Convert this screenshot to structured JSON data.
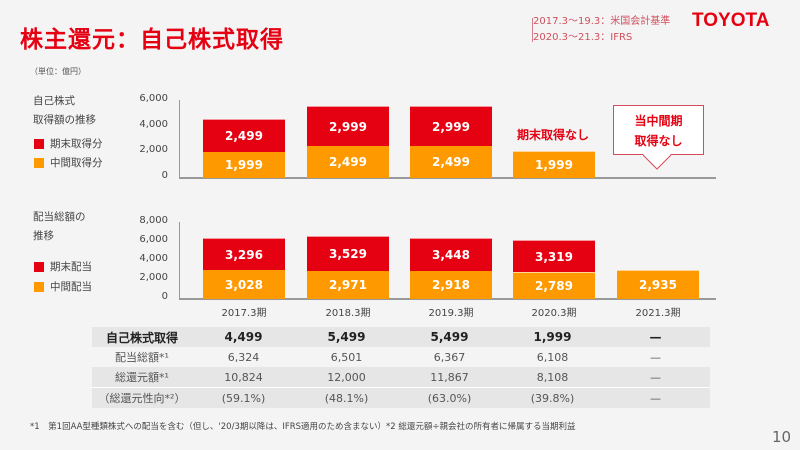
{
  "title": "株主還元：自己株式取得",
  "standards": [
    "2017.3〜19.3：米国会計基準",
    "2020.3〜21.3：IFRS"
  ],
  "logo": "TOYOTA",
  "unit": "（単位：億円）",
  "colors": {
    "end": "#e50012",
    "interim": "#ff9900",
    "accent": "#e50012"
  },
  "chart_data": [
    {
      "type": "bar",
      "stacked": true,
      "title_lines": [
        "自己株式",
        "取得額の推移"
      ],
      "categories": [
        "2017.3期",
        "2018.3期",
        "2019.3期",
        "2020.3期",
        "2021.3期"
      ],
      "series": [
        {
          "name": "中間取得分",
          "values": [
            1999,
            2499,
            2499,
            1999,
            null
          ]
        },
        {
          "name": "期末取得分",
          "values": [
            2499,
            2999,
            2999,
            null,
            null
          ]
        }
      ],
      "yticks": [
        "0",
        "2,000",
        "4,000",
        "6,000"
      ],
      "ylim": [
        0,
        6000
      ],
      "annotations": [
        "期末取得なし",
        "当中間期",
        "取得なし"
      ]
    },
    {
      "type": "bar",
      "stacked": true,
      "title_lines": [
        "配当総額の",
        "推移"
      ],
      "categories": [
        "2017.3期",
        "2018.3期",
        "2019.3期",
        "2020.3期",
        "2021.3期"
      ],
      "series": [
        {
          "name": "中間配当",
          "values": [
            3028,
            2971,
            2918,
            2789,
            2935
          ]
        },
        {
          "name": "期末配当",
          "values": [
            3296,
            3529,
            3448,
            3319,
            null
          ]
        }
      ],
      "yticks": [
        "0",
        "2,000",
        "4,000",
        "6,000",
        "8,000"
      ],
      "ylim": [
        0,
        8000
      ]
    }
  ],
  "table": {
    "rows": [
      {
        "label": "自己株式取得",
        "values": [
          "4,499",
          "5,499",
          "5,499",
          "1,999",
          "—"
        ]
      },
      {
        "label": "配当総額*¹",
        "values": [
          "6,324",
          "6,501",
          "6,367",
          "6,108",
          "—"
        ]
      },
      {
        "label": "総還元額*¹",
        "values": [
          "10,824",
          "12,000",
          "11,867",
          "8,108",
          "—"
        ]
      },
      {
        "label": "（総還元性向*²）",
        "values": [
          "(59.1%)",
          "(48.1%)",
          "(63.0%)",
          "(39.8%)",
          "—"
        ]
      }
    ]
  },
  "footnote": "*1　第1回AA型種類株式への配当を含む（但し、'20/3期以降は、IFRS適用のため含まない）*2 総還元額÷親会社の所有者に帰属する当期利益",
  "page": "10"
}
